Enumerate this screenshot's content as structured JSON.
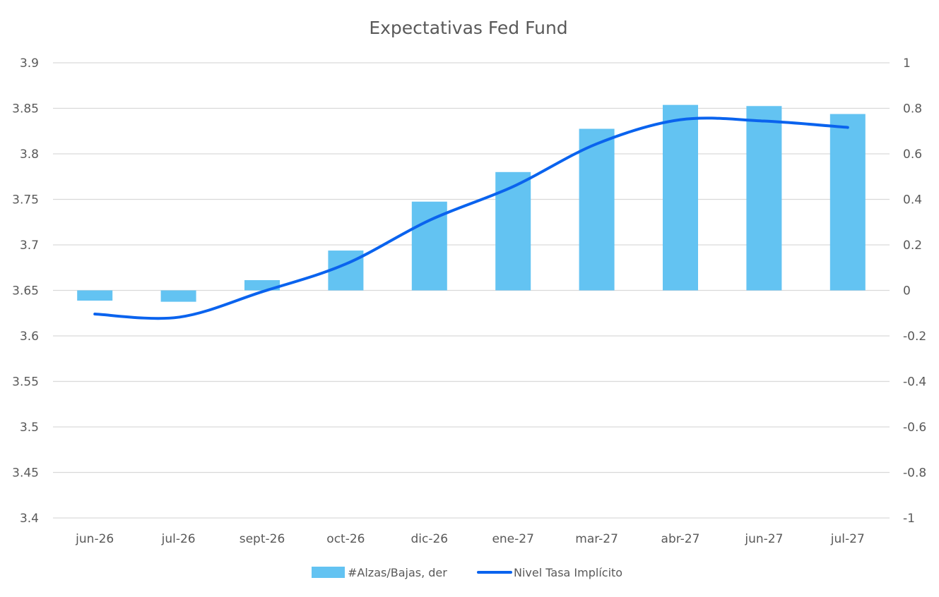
{
  "chart_data": {
    "type": "bar",
    "title": "Expectativas Fed Fund",
    "categories": [
      "jun-26",
      "jul-26",
      "sept-26",
      "oct-26",
      "dic-26",
      "ene-27",
      "mar-27",
      "abr-27",
      "jun-27",
      "jul-27"
    ],
    "series": [
      {
        "name": "#Alzas/Bajas, der",
        "type": "bar",
        "axis": "right",
        "color": "#63c3f2",
        "values": [
          -0.045,
          -0.05,
          0.045,
          0.175,
          0.39,
          0.52,
          0.71,
          0.815,
          0.81,
          0.775
        ]
      },
      {
        "name": "Nivel Tasa Implícito",
        "type": "line",
        "axis": "left",
        "color": "#0a63ee",
        "smooth": true,
        "values": [
          3.624,
          3.6205,
          3.6485,
          3.679,
          3.727,
          3.764,
          3.811,
          3.8375,
          3.836,
          3.829
        ]
      }
    ],
    "left_axis": {
      "ylim": [
        3.4,
        3.9
      ],
      "ticks": [
        "3.4",
        "3.45",
        "3.5",
        "3.55",
        "3.6",
        "3.65",
        "3.7",
        "3.75",
        "3.8",
        "3.85",
        "3.9"
      ]
    },
    "right_axis": {
      "ylim": [
        -1,
        1
      ],
      "ticks": [
        "-1",
        "-0.8",
        "-0.6",
        "-0.4",
        "-0.2",
        "0",
        "0.2",
        "0.4",
        "0.6",
        "0.8",
        "1"
      ]
    },
    "grid": true,
    "legend_position": "bottom"
  }
}
